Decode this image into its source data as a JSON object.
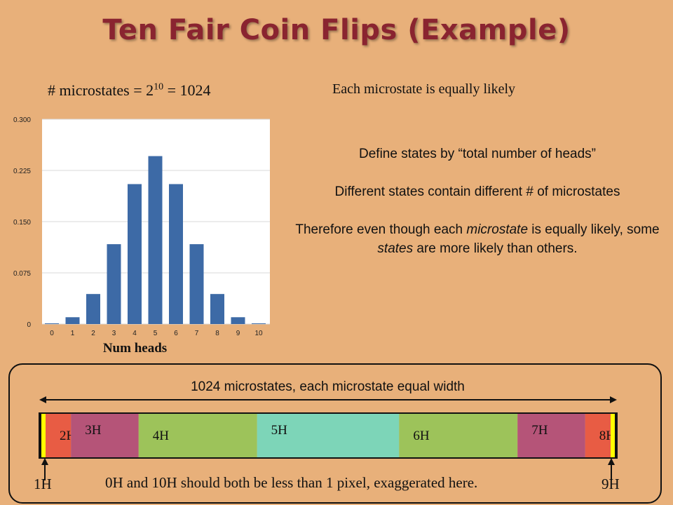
{
  "slide": {
    "title": "Ten Fair Coin Flips (Example)",
    "formula": {
      "left": "# microstates = 2",
      "exponent": "10",
      "right": " = 1024"
    },
    "equally_likely": "Each microstate is equally likely",
    "paragraphs": {
      "p1": "Define states by “total number of heads”",
      "p2": "Different states contain different # of microstates",
      "p3_a": "Therefore even though each ",
      "p3_em1": "microstate",
      "p3_b": " is equally likely, some ",
      "p3_em2": "states",
      "p3_c": " are more likely than others."
    }
  },
  "chart_data": {
    "type": "bar",
    "categories": [
      "0",
      "1",
      "2",
      "3",
      "4",
      "5",
      "6",
      "7",
      "8",
      "9",
      "10"
    ],
    "values": [
      0.001,
      0.01,
      0.044,
      0.117,
      0.205,
      0.246,
      0.205,
      0.117,
      0.044,
      0.01,
      0.001
    ],
    "xlabel": "Num heads",
    "ylabel": "",
    "ylim": [
      0,
      0.3
    ],
    "yticks": [
      "0",
      "0.075",
      "0.150",
      "0.225",
      "0.300"
    ],
    "grid": true,
    "bar_color": "#3d6aa6"
  },
  "bottom": {
    "caption": "1024 microstates, each microstate equal width",
    "total": 1024,
    "segments": [
      {
        "label": "",
        "count": 1,
        "color": "#ffff00"
      },
      {
        "label": "",
        "count": 10,
        "color": "#ffff00"
      },
      {
        "label": "2H",
        "count": 45,
        "color": "#e85c44"
      },
      {
        "label": "3H",
        "count": 120,
        "color": "#b55478"
      },
      {
        "label": "4H",
        "count": 210,
        "color": "#9dc35a"
      },
      {
        "label": "5H",
        "count": 252,
        "color": "#7dd5b8"
      },
      {
        "label": "6H",
        "count": 210,
        "color": "#9dc35a"
      },
      {
        "label": "7H",
        "count": 120,
        "color": "#b55478"
      },
      {
        "label": "8H",
        "count": 45,
        "color": "#e85c44"
      },
      {
        "label": "",
        "count": 10,
        "color": "#ffff00"
      },
      {
        "label": "",
        "count": 1,
        "color": "#ffff00"
      }
    ],
    "note": "0H and 10H should both be less than 1 pixel, exaggerated here.",
    "left_label": "1H",
    "right_label": "9H"
  }
}
